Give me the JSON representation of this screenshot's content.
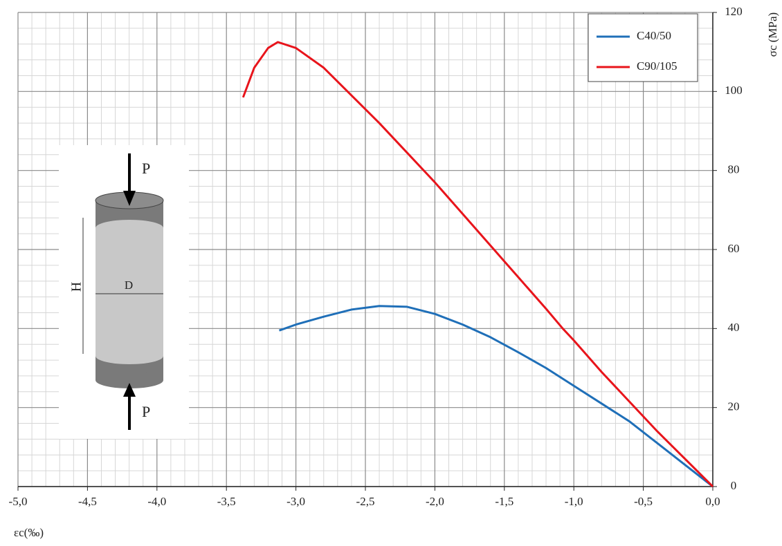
{
  "chart_data": {
    "type": "line",
    "xlabel": "εc(‰)",
    "ylabel": "σc (MPa)",
    "xlim": [
      -5.0,
      0.0
    ],
    "ylim": [
      0,
      120
    ],
    "xticks": [
      {
        "value": -5.0,
        "label": "-5,0"
      },
      {
        "value": -4.5,
        "label": "-4,5"
      },
      {
        "value": -4.0,
        "label": "-4,0"
      },
      {
        "value": -3.5,
        "label": "-3,5"
      },
      {
        "value": -3.0,
        "label": "-3,0"
      },
      {
        "value": -2.5,
        "label": "-2,5"
      },
      {
        "value": -2.0,
        "label": "-2,0"
      },
      {
        "value": -1.5,
        "label": "-1,5"
      },
      {
        "value": -1.0,
        "label": "-1,0"
      },
      {
        "value": -0.5,
        "label": "-0,5"
      },
      {
        "value": 0.0,
        "label": "0,0"
      }
    ],
    "yticks": [
      0,
      20,
      40,
      60,
      80,
      100,
      120
    ],
    "grid": true,
    "minor_grid": true,
    "y_axis_side": "right",
    "legend": "upper right",
    "series": [
      {
        "name": "C40/50",
        "color": "#1f6fb8",
        "x": [
          -3.12,
          -3.0,
          -2.8,
          -2.6,
          -2.4,
          -2.2,
          -2.0,
          -1.8,
          -1.6,
          -1.4,
          -1.2,
          -1.0,
          -0.8,
          -0.6,
          -0.4,
          -0.2,
          0.0
        ],
        "values": [
          39.5,
          41.0,
          43.0,
          44.8,
          45.7,
          45.5,
          43.7,
          41.0,
          37.8,
          34.0,
          30.0,
          25.5,
          21.0,
          16.5,
          11.0,
          5.5,
          0
        ]
      },
      {
        "name": "C90/105",
        "color": "#e8141b",
        "x": [
          -3.38,
          -3.3,
          -3.2,
          -3.13,
          -3.0,
          -2.8,
          -2.6,
          -2.4,
          -2.2,
          -2.0,
          -1.8,
          -1.6,
          -1.4,
          -1.2,
          -1.08,
          -1.0,
          -0.8,
          -0.6,
          -0.4,
          -0.2,
          0.0
        ],
        "values": [
          98.5,
          106,
          111,
          112.5,
          111,
          106,
          99,
          92,
          84.5,
          77,
          69,
          61,
          53,
          45,
          40,
          37,
          29,
          21.5,
          14,
          7,
          0
        ]
      }
    ],
    "inset_labels": {
      "top_force": "P",
      "bottom_force": "P",
      "height": "H",
      "diameter": "D"
    }
  }
}
